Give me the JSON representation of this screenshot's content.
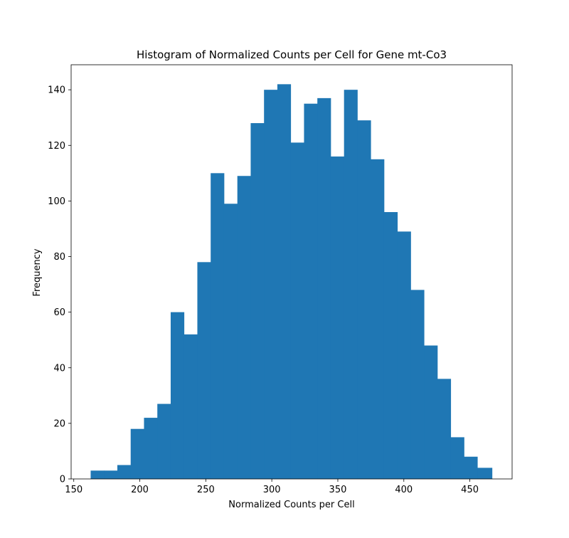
{
  "chart_data": {
    "type": "bar",
    "title": "Histogram of Normalized Counts per Cell for Gene mt-Co3",
    "xlabel": "Normalized Counts per Cell",
    "ylabel": "Frequency",
    "xlim": [
      148,
      482
    ],
    "ylim": [
      0,
      149
    ],
    "xticks": [
      150,
      200,
      250,
      300,
      350,
      400,
      450
    ],
    "yticks": [
      0,
      20,
      40,
      60,
      80,
      100,
      120,
      140
    ],
    "bin_edges": [
      162.8,
      172.9,
      183.0,
      193.1,
      203.2,
      213.3,
      223.4,
      233.5,
      243.6,
      253.7,
      263.8,
      273.9,
      284.0,
      294.1,
      304.2,
      314.3,
      324.4,
      334.5,
      344.6,
      354.7,
      364.8,
      374.9,
      385.0,
      395.1,
      405.2,
      415.3,
      425.4,
      435.5,
      445.6,
      455.7,
      466.8
    ],
    "values": [
      3,
      3,
      5,
      18,
      22,
      27,
      60,
      52,
      78,
      110,
      99,
      109,
      128,
      140,
      142,
      121,
      135,
      137,
      116,
      140,
      129,
      115,
      96,
      89,
      68,
      48,
      36,
      15,
      8,
      4
    ],
    "color": "#1f77b4",
    "grid": false,
    "legend": "none"
  }
}
